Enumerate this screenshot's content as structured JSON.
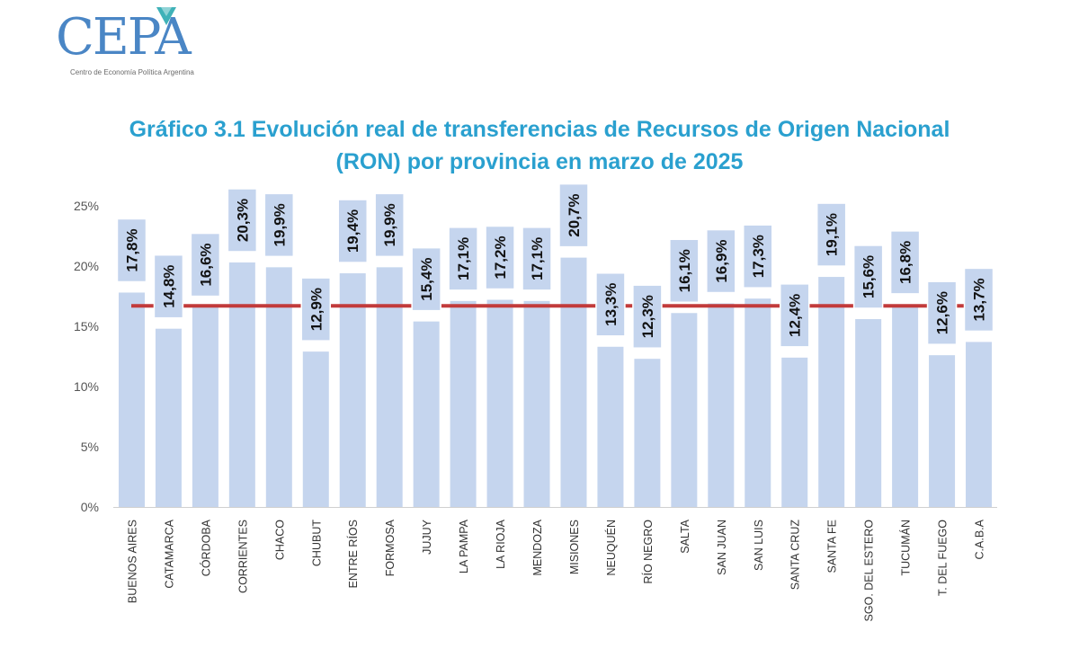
{
  "logo": {
    "name": "CEPA",
    "subtitle": "Centro de Economía Política Argentina"
  },
  "title_line1": "Gráfico 3.1 Evolución real de transferencias de Recursos de Origen Nacional",
  "title_line2": "(RON) por provincia en marzo de 2025",
  "colors": {
    "bar": "#c5d5ee",
    "label_box": "#c5d5ee",
    "reference_line": "#c23b3b",
    "title": "#2aa0cf",
    "logo": "#4a86c5"
  },
  "chart_data": {
    "type": "bar",
    "title": "Gráfico 3.1 Evolución real de transferencias de Recursos de Origen Nacional (RON) por provincia en marzo de 2025",
    "xlabel": "",
    "ylabel": "",
    "ylim": [
      0,
      25
    ],
    "yticks": [
      0,
      5,
      10,
      15,
      20,
      25
    ],
    "ytick_labels": [
      "0%",
      "5%",
      "10%",
      "15%",
      "20%",
      "25%"
    ],
    "grid": false,
    "categories": [
      "BUENOS AIRES",
      "CATAMARCA",
      "CÓRDOBA",
      "CORRIENTES",
      "CHACO",
      "CHUBUT",
      "ENTRE RÍOS",
      "FORMOSA",
      "JUJUY",
      "LA PAMPA",
      "LA RIOJA",
      "MENDOZA",
      "MISIONES",
      "NEUQUÉN",
      "RÍO NEGRO",
      "SALTA",
      "SAN JUAN",
      "SAN LUIS",
      "SANTA CRUZ",
      "SANTA FE",
      "SGO. DEL ESTERO",
      "TUCUMÁN",
      "T. DEL FUEGO",
      "C.A.B.A"
    ],
    "values": [
      17.8,
      14.8,
      16.6,
      20.3,
      19.9,
      12.9,
      19.4,
      19.9,
      15.4,
      17.1,
      17.2,
      17.1,
      20.7,
      13.3,
      12.3,
      16.1,
      16.9,
      17.3,
      12.4,
      19.1,
      15.6,
      16.8,
      12.6,
      13.7
    ],
    "value_labels": [
      "17,8%",
      "14,8%",
      "16,6%",
      "20,3%",
      "19,9%",
      "12,9%",
      "19,4%",
      "19,9%",
      "15,4%",
      "17,1%",
      "17,2%",
      "17,1%",
      "20,7%",
      "13,3%",
      "12,3%",
      "16,1%",
      "16,9%",
      "17,3%",
      "12,4%",
      "19,1%",
      "15,6%",
      "16,8%",
      "12,6%",
      "13,7%"
    ],
    "reference_line": 16.7
  }
}
